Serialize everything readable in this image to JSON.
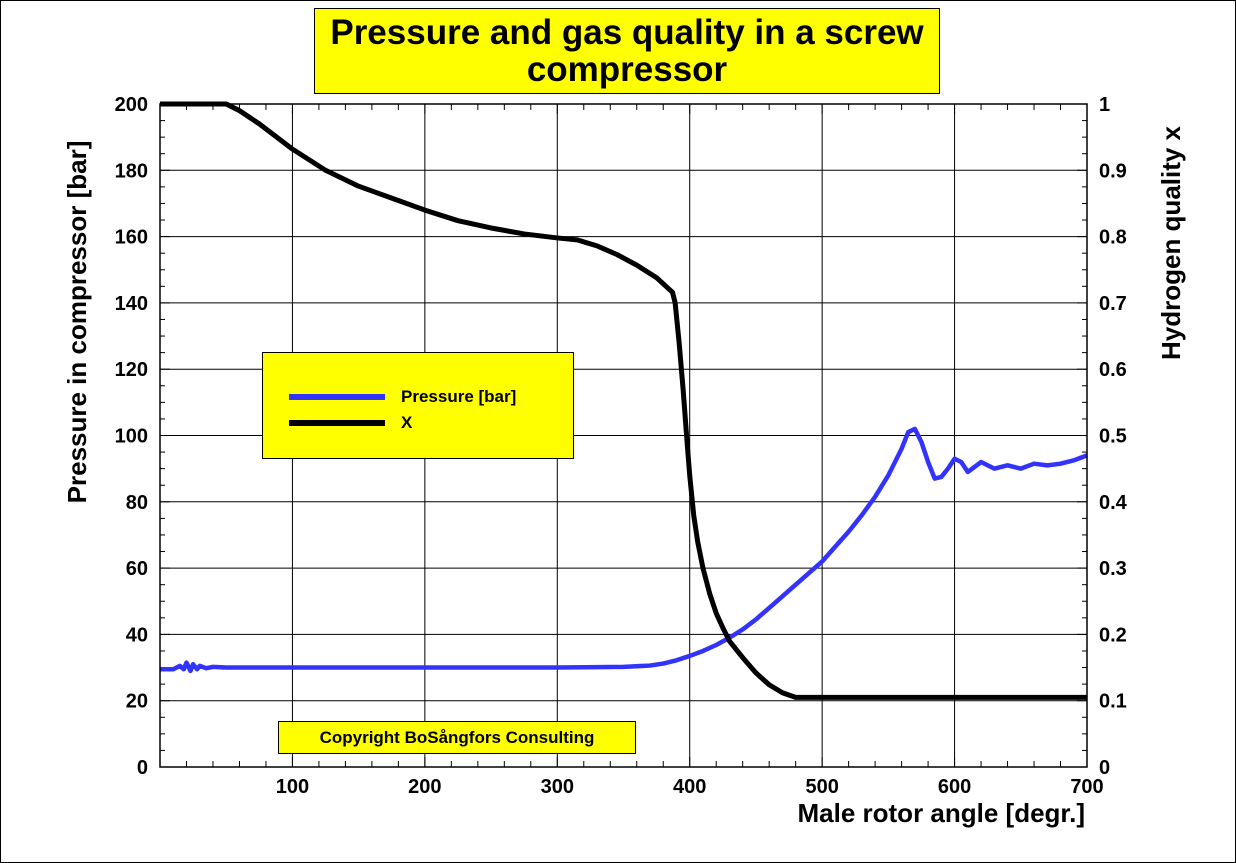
{
  "chart_data": {
    "type": "line",
    "title": "Pressure and gas quality in a screw compressor",
    "xlabel": "Male rotor angle [degr.]",
    "ylabel_left": "Pressure in compressor [bar]",
    "ylabel_right": "Hydrogen quality x",
    "xlim": [
      0,
      700
    ],
    "ylim_left": [
      0,
      200
    ],
    "ylim_right": [
      0,
      1
    ],
    "x_ticks": [
      "100",
      "200",
      "300",
      "400",
      "500",
      "600",
      "700"
    ],
    "y_left_ticks": [
      "0",
      "20",
      "40",
      "60",
      "80",
      "100",
      "120",
      "140",
      "160",
      "180",
      "200"
    ],
    "y_right_ticks": [
      "0",
      "0.1",
      "0.2",
      "0.3",
      "0.4",
      "0.5",
      "0.6",
      "0.7",
      "0.8",
      "0.9",
      "1"
    ],
    "grid": true,
    "legend_position": "middle-left",
    "series": [
      {
        "name": "Pressure [bar]",
        "axis": "left",
        "color": "#3333ff",
        "x": [
          0,
          10,
          15,
          18,
          20,
          23,
          25,
          28,
          30,
          35,
          40,
          50,
          100,
          200,
          300,
          350,
          370,
          380,
          390,
          400,
          410,
          420,
          430,
          440,
          450,
          460,
          470,
          480,
          490,
          500,
          510,
          520,
          530,
          540,
          550,
          560,
          565,
          570,
          575,
          580,
          585,
          590,
          595,
          600,
          605,
          610,
          620,
          630,
          640,
          650,
          660,
          670,
          680,
          690,
          700
        ],
        "values": [
          29.5,
          29.5,
          30.5,
          29.5,
          31.5,
          29.0,
          31.0,
          29.5,
          30.5,
          29.8,
          30.2,
          30.0,
          30.0,
          30.0,
          30.0,
          30.2,
          30.6,
          31.2,
          32.2,
          33.5,
          35.0,
          36.8,
          39.0,
          41.5,
          44.5,
          48.0,
          51.5,
          55.0,
          58.5,
          62.0,
          66.5,
          71.0,
          76.0,
          81.5,
          88.0,
          96.0,
          101.0,
          102.0,
          98.0,
          92.0,
          87.0,
          87.5,
          90.0,
          93.0,
          92.0,
          89.0,
          92.0,
          90.0,
          91.0,
          90.0,
          91.5,
          91.0,
          91.5,
          92.5,
          94.0
        ]
      },
      {
        "name": "X",
        "axis": "right",
        "color": "#000000",
        "x": [
          0,
          25,
          50,
          60,
          75,
          100,
          125,
          150,
          175,
          200,
          225,
          250,
          275,
          300,
          315,
          330,
          345,
          360,
          375,
          387,
          389,
          390,
          392,
          395,
          398,
          400,
          403,
          406,
          410,
          415,
          420,
          425,
          430,
          440,
          450,
          460,
          470,
          480,
          490,
          700
        ],
        "values": [
          1.0,
          1.0,
          1.0,
          0.99,
          0.97,
          0.932,
          0.9,
          0.876,
          0.858,
          0.84,
          0.824,
          0.813,
          0.804,
          0.798,
          0.795,
          0.786,
          0.773,
          0.757,
          0.738,
          0.716,
          0.7,
          0.68,
          0.64,
          0.57,
          0.49,
          0.44,
          0.38,
          0.34,
          0.3,
          0.262,
          0.232,
          0.21,
          0.19,
          0.165,
          0.142,
          0.124,
          0.112,
          0.105,
          0.105,
          0.105
        ]
      }
    ],
    "annotations": [
      "Copyright BoSångfors Consulting"
    ]
  },
  "legend": {
    "items": [
      {
        "label": "Pressure [bar]",
        "color": "#3333ff"
      },
      {
        "label": "X",
        "color": "#000000"
      }
    ]
  },
  "colors": {
    "box_fill": "#ffff00",
    "pressure": "#3333ff",
    "quality": "#000000"
  }
}
